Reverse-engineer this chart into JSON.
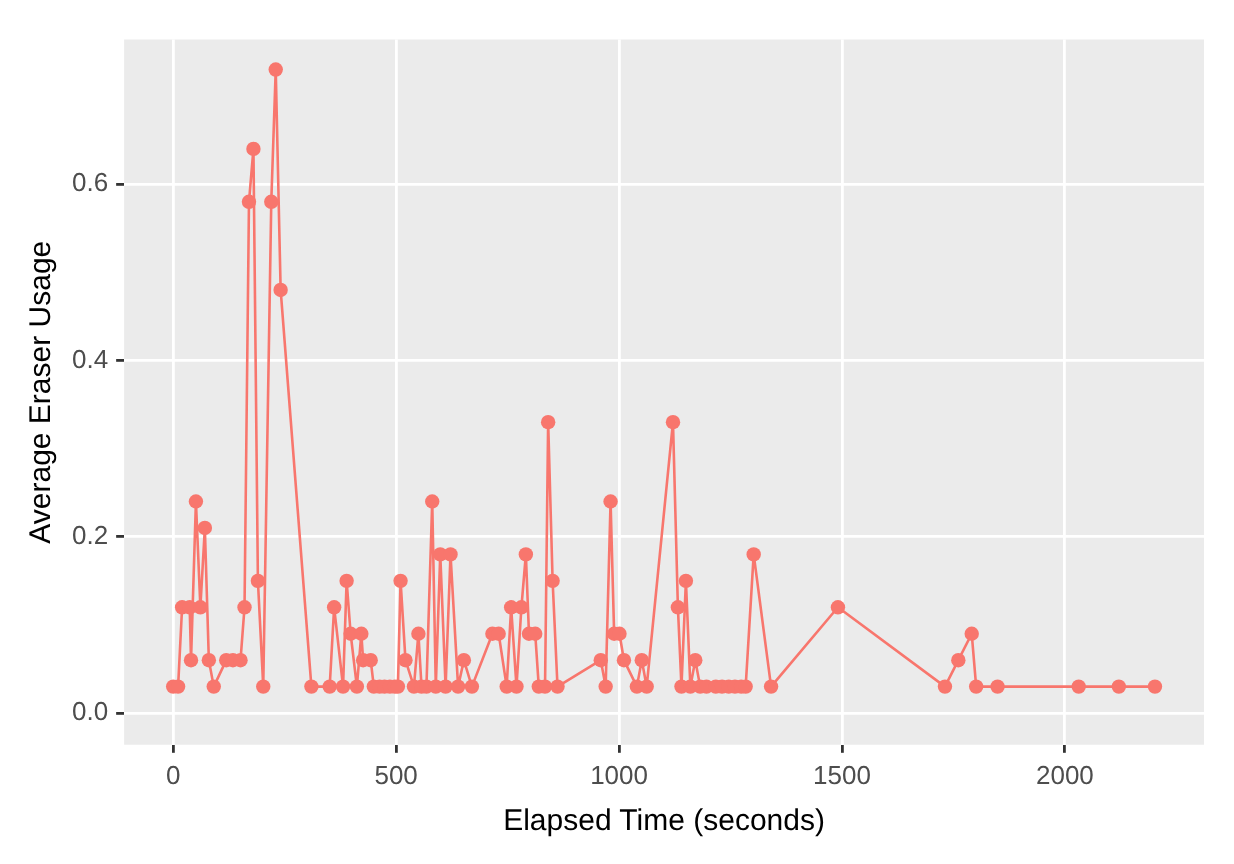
{
  "chart_data": {
    "type": "line",
    "xlabel": "Elapsed Time (seconds)",
    "ylabel": "Average Eraser Usage",
    "x": [
      0,
      11,
      20,
      37,
      40,
      51,
      61,
      71,
      80,
      91,
      119,
      134,
      151,
      160,
      170,
      180,
      190,
      202,
      220,
      230,
      241,
      310,
      351,
      361,
      381,
      389,
      398,
      412,
      422,
      426,
      443,
      450,
      463,
      474,
      486,
      497,
      504,
      510,
      521,
      540,
      550,
      557,
      568,
      581,
      589,
      599,
      611,
      622,
      639,
      652,
      670,
      716,
      730,
      748,
      758,
      770,
      781,
      791,
      798,
      812,
      820,
      834,
      841,
      851,
      862,
      959,
      970,
      981,
      989,
      1001,
      1011,
      1040,
      1051,
      1062,
      1121,
      1132,
      1140,
      1150,
      1160,
      1171,
      1182,
      1196,
      1217,
      1231,
      1246,
      1260,
      1274,
      1284,
      1302,
      1341,
      1491,
      1731,
      1761,
      1791,
      1801,
      1849,
      2031,
      2121,
      2202
    ],
    "series": [
      {
        "color": "#f8766d",
        "values": [
          0.03,
          0.03,
          0.12,
          0.12,
          0.06,
          0.24,
          0.12,
          0.21,
          0.06,
          0.03,
          0.06,
          0.06,
          0.06,
          0.12,
          0.58,
          0.64,
          0.15,
          0.03,
          0.58,
          0.73,
          0.48,
          0.03,
          0.03,
          0.12,
          0.03,
          0.15,
          0.09,
          0.03,
          0.09,
          0.06,
          0.06,
          0.03,
          0.03,
          0.03,
          0.03,
          0.03,
          0.03,
          0.15,
          0.06,
          0.03,
          0.09,
          0.03,
          0.03,
          0.24,
          0.03,
          0.18,
          0.03,
          0.18,
          0.03,
          0.06,
          0.03,
          0.09,
          0.09,
          0.03,
          0.12,
          0.03,
          0.12,
          0.18,
          0.09,
          0.09,
          0.03,
          0.03,
          0.33,
          0.15,
          0.03,
          0.06,
          0.03,
          0.24,
          0.09,
          0.09,
          0.06,
          0.03,
          0.06,
          0.03,
          0.33,
          0.12,
          0.03,
          0.15,
          0.03,
          0.06,
          0.03,
          0.03,
          0.03,
          0.03,
          0.03,
          0.03,
          0.03,
          0.03,
          0.18,
          0.03,
          0.12,
          0.03,
          0.06,
          0.09,
          0.03,
          0.03,
          0.03,
          0.03,
          0.03
        ]
      }
    ],
    "xlim": [
      -110,
      2312
    ],
    "xticks": [
      0,
      500,
      1000,
      1500,
      2000
    ],
    "ylim": [
      -0.036,
      0.764
    ],
    "yticks": [
      {
        "value": 0,
        "label": "0.0"
      },
      {
        "value": 0.2,
        "label": "0.2"
      },
      {
        "value": 0.4,
        "label": "0.4"
      },
      {
        "value": 0.6,
        "label": "0.6"
      }
    ],
    "grid": true,
    "legend": false,
    "marker": "circle",
    "line_style": "solid"
  }
}
